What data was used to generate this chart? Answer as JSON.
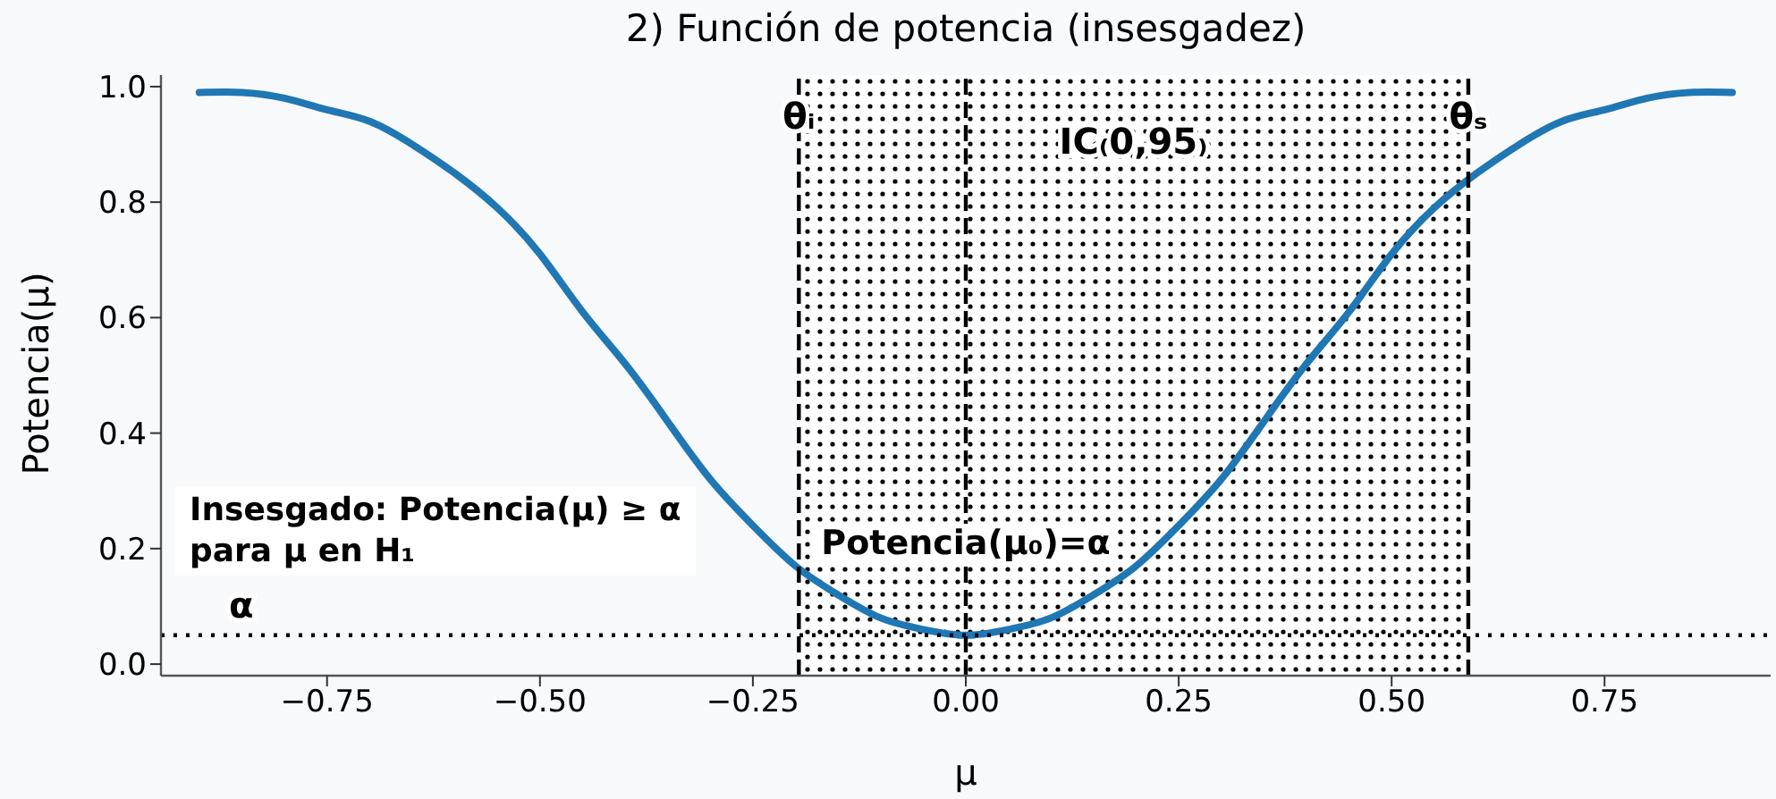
{
  "chart_data": {
    "type": "line",
    "title": "2) Función de potencia (insesgadez)",
    "xlabel": "μ",
    "ylabel": "Potencia(μ)",
    "x": [
      -0.9,
      -0.85,
      -0.8,
      -0.75,
      -0.7,
      -0.65,
      -0.6,
      -0.55,
      -0.5,
      -0.45,
      -0.4,
      -0.35,
      -0.3,
      -0.25,
      -0.2,
      -0.15,
      -0.1,
      -0.05,
      0,
      0.05,
      0.1,
      0.15,
      0.2,
      0.25,
      0.3,
      0.35,
      0.4,
      0.45,
      0.5,
      0.55,
      0.6,
      0.65,
      0.7,
      0.75,
      0.8,
      0.85,
      0.9
    ],
    "series": [
      {
        "color": "#1f77b4",
        "values": [
          0.99,
          0.99,
          0.98,
          0.96,
          0.94,
          0.9,
          0.85,
          0.79,
          0.71,
          0.61,
          0.52,
          0.42,
          0.32,
          0.24,
          0.17,
          0.12,
          0.08,
          0.06,
          0.05,
          0.06,
          0.08,
          0.12,
          0.17,
          0.24,
          0.32,
          0.42,
          0.52,
          0.61,
          0.71,
          0.79,
          0.85,
          0.9,
          0.94,
          0.96,
          0.98,
          0.99,
          0.99
        ]
      }
    ],
    "xlim": [
      -0.945,
      0.945
    ],
    "xticks": [
      {
        "value": -0.75,
        "label": "−0.75"
      },
      {
        "value": -0.5,
        "label": "−0.50"
      },
      {
        "value": -0.25,
        "label": "−0.25"
      },
      {
        "value": 0,
        "label": "0.00"
      },
      {
        "value": 0.25,
        "label": "0.25"
      },
      {
        "value": 0.5,
        "label": "0.50"
      },
      {
        "value": 0.75,
        "label": "0.75"
      }
    ],
    "ylim": [
      -0.02,
      1.02
    ],
    "yticks": [
      {
        "value": 0,
        "label": "0.0"
      },
      {
        "value": 0.2,
        "label": "0.2"
      },
      {
        "value": 0.4,
        "label": "0.4"
      },
      {
        "value": 0.6,
        "label": "0.6"
      },
      {
        "value": 0.8,
        "label": "0.8"
      },
      {
        "value": 1,
        "label": "1.0"
      }
    ],
    "marker": "none",
    "line_style": "solid",
    "ref_lines": [
      {
        "axis": "y",
        "value": 0.05,
        "label": "α",
        "line_style": "dotted",
        "color": "#000000"
      },
      {
        "axis": "x",
        "value": -0.196,
        "label": "θᵢ",
        "line_style": "dashed",
        "color": "#000000"
      },
      {
        "axis": "x",
        "value": 0,
        "line_style": "dashed",
        "color": "#000000"
      },
      {
        "axis": "x",
        "value": 0.59,
        "label": "θₛ",
        "line_style": "dashed",
        "color": "#000000"
      }
    ],
    "bands": [
      {
        "axis": "x",
        "from": -0.196,
        "to": 0.59,
        "label": "IC₍0,95₎",
        "color": "#000000"
      }
    ],
    "annotations": [
      "Insesgado: Potencia(μ) ≥ α\npara μ en H₁",
      {
        "text": "Potencia(μ₀)=α",
        "x": 0,
        "y": 0.05
      }
    ]
  }
}
